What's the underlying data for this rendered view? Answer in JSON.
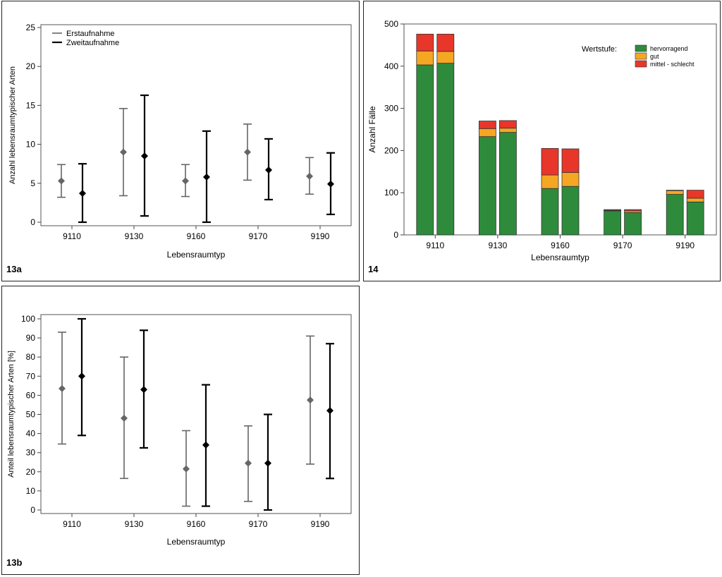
{
  "panels": {
    "a": {
      "label": "13a"
    },
    "c": {
      "label": "14"
    },
    "b": {
      "label": "13b"
    }
  },
  "chart_data": [
    {
      "id": "13a",
      "type": "errorbar",
      "xlabel": "Lebensraumtyp",
      "ylabel": "Anzahl lebensraumtypischer Arten",
      "ylim": [
        0,
        25
      ],
      "yticks": [
        0,
        5,
        10,
        15,
        20,
        25
      ],
      "categories": [
        "9110",
        "9130",
        "9160",
        "9170",
        "9190"
      ],
      "legend": {
        "placement": "top-left",
        "entries": [
          "Erstaufnahme",
          "Zweitaufnahme"
        ]
      },
      "series": [
        {
          "name": "Erstaufnahme",
          "color": "#666666",
          "mean": [
            5.3,
            9.0,
            5.3,
            9.0,
            5.9
          ],
          "low": [
            3.2,
            3.4,
            3.3,
            5.4,
            3.6
          ],
          "high": [
            7.4,
            14.6,
            7.4,
            12.6,
            8.3
          ]
        },
        {
          "name": "Zweitaufnahme",
          "color": "#000000",
          "mean": [
            3.7,
            8.5,
            5.8,
            6.7,
            4.9
          ],
          "low": [
            0.0,
            0.8,
            0.0,
            2.9,
            1.0
          ],
          "high": [
            7.5,
            16.3,
            11.7,
            10.7,
            8.9
          ]
        }
      ]
    },
    {
      "id": "14",
      "type": "stacked-bar",
      "xlabel": "Lebensraumtyp",
      "ylabel": "Anzahl Fälle",
      "ylim": [
        0,
        500
      ],
      "yticks": [
        0,
        100,
        200,
        300,
        400,
        500
      ],
      "categories": [
        "9110",
        "9130",
        "9160",
        "9170",
        "9190"
      ],
      "legend_title": "Wertstufe:",
      "legend_placement": "top-right",
      "bars_per_category": 2,
      "series": [
        {
          "name": "hervorragend",
          "color": "#2e8b3c",
          "values": [
            [
              403,
              407
            ],
            [
              233,
              243
            ],
            [
              110,
              115
            ],
            [
              57,
              53
            ],
            [
              96,
              78
            ]
          ]
        },
        {
          "name": "gut",
          "color": "#f5a623",
          "values": [
            [
              33,
              28
            ],
            [
              19,
              10
            ],
            [
              32,
              33
            ],
            [
              1,
              4
            ],
            [
              9,
              9
            ]
          ]
        },
        {
          "name": "mittel - schlecht",
          "color": "#e8362a",
          "values": [
            [
              40,
              41
            ],
            [
              18,
              18
            ],
            [
              63,
              56
            ],
            [
              2,
              3
            ],
            [
              1,
              19
            ]
          ]
        }
      ]
    },
    {
      "id": "13b",
      "type": "errorbar",
      "xlabel": "Lebensraumtyp",
      "ylabel": "Anteil lebensraumtypischer Arten [%]",
      "ylim": [
        0,
        100
      ],
      "yticks": [
        0,
        10,
        20,
        30,
        40,
        50,
        60,
        70,
        80,
        90,
        100
      ],
      "categories": [
        "9110",
        "9130",
        "9160",
        "9170",
        "9190"
      ],
      "series": [
        {
          "name": "Erstaufnahme",
          "color": "#666666",
          "mean": [
            63.5,
            48.0,
            21.5,
            24.5,
            57.5
          ],
          "low": [
            34.5,
            16.5,
            2.0,
            4.5,
            24.0
          ],
          "high": [
            93.0,
            80.0,
            41.5,
            44.0,
            91.0
          ]
        },
        {
          "name": "Zweitaufnahme",
          "color": "#000000",
          "mean": [
            70.0,
            63.0,
            34.0,
            24.5,
            52.0
          ],
          "low": [
            39.0,
            32.5,
            2.0,
            0.0,
            16.5
          ],
          "high": [
            100.0,
            94.0,
            65.5,
            50.0,
            87.0
          ]
        }
      ]
    }
  ]
}
